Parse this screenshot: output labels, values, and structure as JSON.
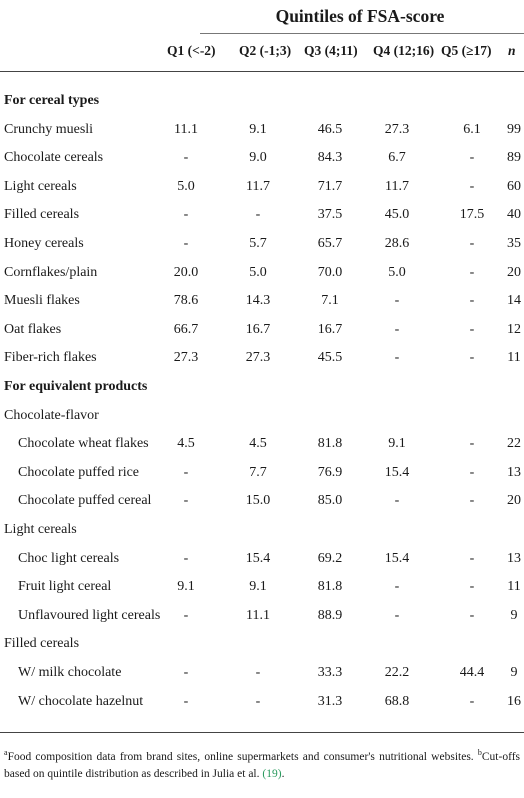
{
  "header": {
    "title": "Quintiles of FSA-score",
    "columns": [
      "Q1 (<-2)",
      "Q2 (-1;3)",
      "Q3 (4;11)",
      "Q4 (12;16)",
      "Q5 (≥17)",
      "n"
    ]
  },
  "rows": [
    {
      "label": "For cereal types",
      "kind": "section",
      "values": [
        "",
        "",
        "",
        "",
        "",
        ""
      ]
    },
    {
      "label": "Crunchy muesli",
      "kind": "item",
      "values": [
        "11.1",
        "9.1",
        "46.5",
        "27.3",
        "6.1",
        "99"
      ]
    },
    {
      "label": "Chocolate cereals",
      "kind": "item",
      "values": [
        "-",
        "9.0",
        "84.3",
        "6.7",
        "-",
        "89"
      ]
    },
    {
      "label": "Light cereals",
      "kind": "item",
      "values": [
        "5.0",
        "11.7",
        "71.7",
        "11.7",
        "-",
        "60"
      ]
    },
    {
      "label": "Filled cereals",
      "kind": "item",
      "values": [
        "-",
        "-",
        "37.5",
        "45.0",
        "17.5",
        "40"
      ]
    },
    {
      "label": "Honey cereals",
      "kind": "item",
      "values": [
        "-",
        "5.7",
        "65.7",
        "28.6",
        "-",
        "35"
      ]
    },
    {
      "label": "Cornflakes/plain",
      "kind": "item",
      "values": [
        "20.0",
        "5.0",
        "70.0",
        "5.0",
        "-",
        "20"
      ]
    },
    {
      "label": "Muesli flakes",
      "kind": "item",
      "values": [
        "78.6",
        "14.3",
        "7.1",
        "-",
        "-",
        "14"
      ]
    },
    {
      "label": "Oat flakes",
      "kind": "item",
      "values": [
        "66.7",
        "16.7",
        "16.7",
        "-",
        "-",
        "12"
      ]
    },
    {
      "label": "Fiber-rich flakes",
      "kind": "item",
      "values": [
        "27.3",
        "27.3",
        "45.5",
        "-",
        "-",
        "11"
      ]
    },
    {
      "label": "For equivalent products",
      "kind": "section",
      "values": [
        "",
        "",
        "",
        "",
        "",
        ""
      ]
    },
    {
      "label": "Chocolate-flavor",
      "kind": "group",
      "values": [
        "",
        "",
        "",
        "",
        "",
        ""
      ]
    },
    {
      "label": "Chocolate wheat flakes",
      "kind": "indent",
      "values": [
        "4.5",
        "4.5",
        "81.8",
        "9.1",
        "-",
        "22"
      ]
    },
    {
      "label": "Chocolate puffed rice",
      "kind": "indent",
      "values": [
        "-",
        "7.7",
        "76.9",
        "15.4",
        "-",
        "13"
      ]
    },
    {
      "label": "Chocolate puffed cereal",
      "kind": "indent",
      "values": [
        "-",
        "15.0",
        "85.0",
        "-",
        "-",
        "20"
      ]
    },
    {
      "label": "Light cereals",
      "kind": "group",
      "values": [
        "",
        "",
        "",
        "",
        "",
        ""
      ]
    },
    {
      "label": "Choc light cereals",
      "kind": "indent",
      "values": [
        "-",
        "15.4",
        "69.2",
        "15.4",
        "-",
        "13"
      ]
    },
    {
      "label": "Fruit light cereal",
      "kind": "indent",
      "values": [
        "9.1",
        "9.1",
        "81.8",
        "-",
        "-",
        "11"
      ]
    },
    {
      "label": "Unflavoured light cereals",
      "kind": "indent",
      "values": [
        "-",
        "11.1",
        "88.9",
        "-",
        "-",
        "9"
      ]
    },
    {
      "label": "Filled cereals",
      "kind": "group",
      "values": [
        "",
        "",
        "",
        "",
        "",
        ""
      ]
    },
    {
      "label": "W/ milk chocolate",
      "kind": "indent",
      "values": [
        "-",
        "-",
        "33.3",
        "22.2",
        "44.4",
        "9"
      ]
    },
    {
      "label": "W/ chocolate hazelnut",
      "kind": "indent",
      "values": [
        "-",
        "-",
        "31.3",
        "68.8",
        "-",
        "16"
      ]
    }
  ],
  "footnote": {
    "mark_a": "a",
    "text_a": "Food composition data from brand sites, online supermarkets and consumer's nutritional websites.",
    "mark_b": "b",
    "text_b": "Cut-offs based on quintile distribution as described in Julia et al.",
    "citation": "(19)",
    "end": "."
  }
}
